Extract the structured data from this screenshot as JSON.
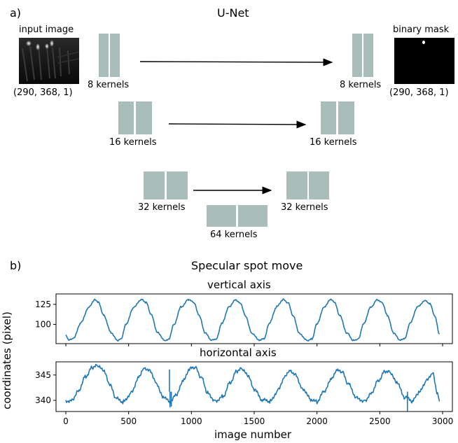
{
  "panel_a": {
    "letter": "a)",
    "title": "U-Net",
    "input_label": "input image",
    "output_label": "binary mask",
    "input_shape": "(290, 368, 1)",
    "output_shape": "(290, 368, 1)",
    "encoder_labels": [
      "8 kernels",
      "16 kernels",
      "32 kernels"
    ],
    "decoder_labels": [
      "8 kernels",
      "16 kernels",
      "32 kernels"
    ],
    "bottleneck_label": "64 kernels",
    "block_color": "#a9bdbb"
  },
  "panel_b": {
    "letter": "b)",
    "title": "Specular spot move",
    "ylabel": "coordinates (pixel)",
    "xlabel": "image number",
    "line_color": "#1f77b4"
  },
  "chart_data": [
    {
      "type": "line",
      "title": "vertical axis",
      "xlim": [
        0,
        3000
      ],
      "ylim": [
        76,
        138
      ],
      "yticks": [
        100,
        125
      ],
      "xticks": [
        0,
        500,
        1000,
        1500,
        2000,
        2500,
        3000
      ],
      "period_images": 375,
      "series": [
        {
          "x": [
            0,
            20,
            60,
            120,
            180,
            230,
            260,
            300,
            360,
            410,
            440,
            480,
            540,
            600,
            640,
            680,
            730,
            790,
            820,
            860,
            920,
            980,
            1020,
            1060,
            1110,
            1160,
            1200,
            1240,
            1300,
            1350,
            1390,
            1430,
            1480,
            1540,
            1580,
            1620,
            1680,
            1730,
            1770,
            1810,
            1860,
            1920,
            1960,
            2000,
            2060,
            2110,
            2140,
            2180,
            2240,
            2290,
            2330,
            2370,
            2430,
            2480,
            2520,
            2560,
            2610,
            2660,
            2700,
            2740,
            2800,
            2860,
            2900,
            2940,
            2975
          ],
          "y": [
            87,
            80,
            82,
            102,
            121,
            131,
            128,
            112,
            90,
            80,
            82,
            100,
            121,
            131,
            127,
            112,
            90,
            80,
            82,
            100,
            122,
            131,
            127,
            111,
            89,
            80,
            82,
            101,
            122,
            131,
            127,
            111,
            89,
            80,
            82,
            101,
            122,
            131,
            127,
            111,
            89,
            80,
            82,
            101,
            122,
            131,
            127,
            111,
            89,
            80,
            82,
            101,
            122,
            131,
            127,
            111,
            89,
            80,
            82,
            101,
            122,
            130,
            126,
            110,
            88
          ]
        }
      ]
    },
    {
      "type": "line",
      "title": "horizontal axis",
      "xlim": [
        0,
        3000
      ],
      "ylim": [
        337.8,
        347.6
      ],
      "yticks": [
        340,
        345
      ],
      "xticks": [
        0,
        500,
        1000,
        1500,
        2000,
        2500,
        3000
      ],
      "series": [
        {
          "x": [
            0,
            50,
            100,
            160,
            210,
            250,
            300,
            350,
            400,
            460,
            520,
            580,
            620,
            670,
            720,
            770,
            830,
            880,
            940,
            990,
            1030,
            1080,
            1130,
            1190,
            1250,
            1310,
            1360,
            1400,
            1450,
            1500,
            1570,
            1630,
            1690,
            1740,
            1780,
            1830,
            1880,
            1950,
            2000,
            2060,
            2120,
            2160,
            2200,
            2250,
            2320,
            2380,
            2430,
            2490,
            2540,
            2580,
            2630,
            2700,
            2760,
            2810,
            2870,
            2920,
            2960,
            2975
          ],
          "y": [
            339.8,
            340.2,
            342.0,
            344.8,
            346.5,
            346.8,
            345.8,
            343.0,
            340.3,
            339.7,
            341.5,
            344.6,
            346.5,
            346.0,
            343.5,
            340.8,
            339.6,
            341.0,
            344.0,
            346.2,
            346.4,
            344.5,
            341.5,
            339.9,
            340.8,
            343.6,
            345.8,
            346.2,
            344.8,
            342.0,
            340.0,
            339.8,
            342.0,
            344.6,
            346.0,
            345.2,
            342.5,
            340.2,
            339.7,
            341.8,
            344.3,
            345.8,
            345.5,
            343.2,
            340.4,
            339.9,
            341.5,
            344.0,
            345.8,
            345.6,
            343.6,
            340.6,
            339.8,
            341.4,
            343.8,
            345.4,
            341.5,
            339.8
          ]
        }
      ],
      "spikes": [
        {
          "x": 825,
          "y": 346.1
        },
        {
          "x": 830,
          "y": 338.6
        },
        {
          "x": 840,
          "y": 338.8
        },
        {
          "x": 2720,
          "y": 337.9
        }
      ]
    }
  ]
}
